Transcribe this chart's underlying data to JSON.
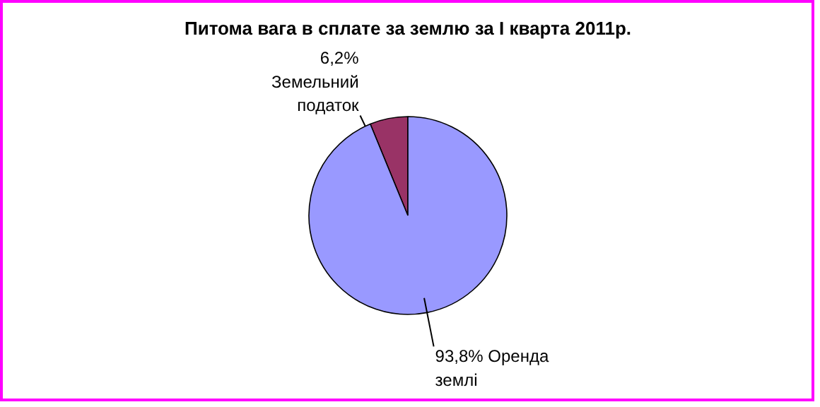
{
  "chart_data": {
    "type": "pie",
    "title": "Питома вага в сплате за землю за І кварта 2011р.",
    "categories": [
      "Земельний податок",
      "Оренда землі"
    ],
    "values": [
      6.2,
      93.8
    ],
    "value_labels": [
      "6,2%",
      "93,8%"
    ],
    "colors": [
      "#993366",
      "#9999ff"
    ]
  }
}
